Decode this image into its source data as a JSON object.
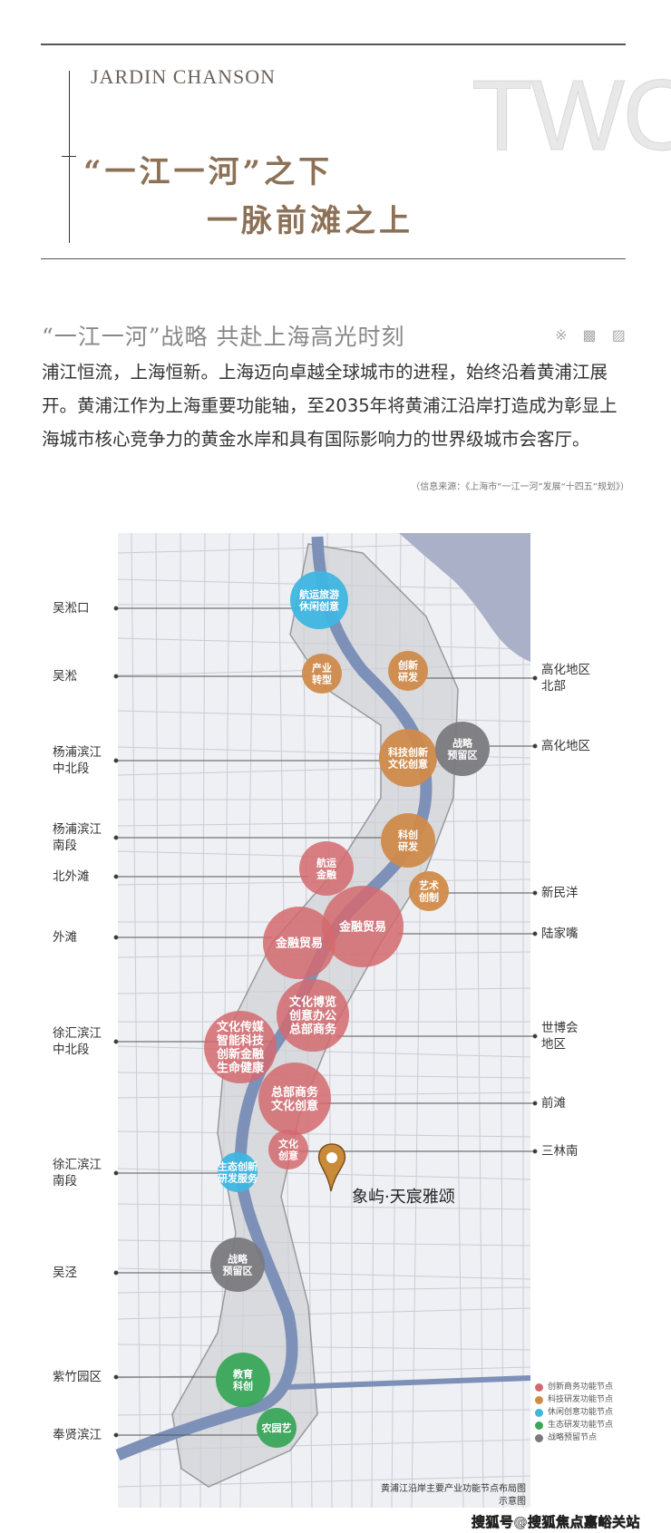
{
  "header": {
    "brand": "JARDIN CHANSON",
    "section_number": "TWO",
    "title_line1": "“一江一河”之下",
    "title_line2": "一脉前滩之上"
  },
  "section": {
    "subtitle": "“一江一河”战略  共赴上海高光时刻",
    "ornament": "※ ▩ ▨",
    "paragraph": "浦江恒流，上海恒新。上海迈向卓越全球城市的进程，始终沿着黄浦江展开。黄浦江作为上海重要功能轴，至2035年将黄浦江沿岸打造成为彰显上海城市核心竞争力的黄金水岸和具有国际影响力的世界级城市会客厅。",
    "source": "（信息来源：《上海市“一江一河”发展“十四五”规划》）"
  },
  "map": {
    "colors": {
      "commerce": "#d46a6f",
      "tech": "#d08b4a",
      "leisure": "#3fb6e0",
      "eco": "#3aa65a",
      "reserve": "#7a7a7e",
      "river": "#7d90b8"
    },
    "left_labels": [
      "吴淞口",
      "吴淞",
      "杨浦滨江\n中北段",
      "杨浦滨江\n南段",
      "北外滩",
      "外滩",
      "徐汇滨江\n中北段",
      "徐汇滨江\n南段",
      "吴泾",
      "紫竹园区",
      "奉贤滨江"
    ],
    "right_labels": [
      "高化地区\n北部",
      "高化地区",
      "新民洋",
      "陆家嘴",
      "世博会\n地区",
      "前滩",
      "三林南"
    ],
    "nodes": [
      {
        "text": "航运旅游\n休闲创意",
        "type": "leisure"
      },
      {
        "text": "产业\n转型",
        "type": "tech"
      },
      {
        "text": "创新\n研发",
        "type": "tech"
      },
      {
        "text": "科技创新\n文化创意",
        "type": "tech"
      },
      {
        "text": "战略\n预留区",
        "type": "reserve"
      },
      {
        "text": "科创\n研发",
        "type": "tech"
      },
      {
        "text": "航运\n金融",
        "type": "commerce"
      },
      {
        "text": "艺术\n创制",
        "type": "tech"
      },
      {
        "text": "金融贸易",
        "type": "commerce"
      },
      {
        "text": "金融贸易",
        "type": "commerce"
      },
      {
        "text": "文化博览\n创意办公\n总部商务",
        "type": "commerce"
      },
      {
        "text": "文化传媒\n智能科技\n创新金融\n生命健康",
        "type": "commerce"
      },
      {
        "text": "总部商务\n文化创意",
        "type": "commerce"
      },
      {
        "text": "文化\n创意",
        "type": "commerce"
      },
      {
        "text": "生态创新\n研发服务",
        "type": "leisure"
      },
      {
        "text": "战略\n预留区",
        "type": "reserve"
      },
      {
        "text": "教育\n科创",
        "type": "eco"
      },
      {
        "text": "农园艺",
        "type": "eco"
      }
    ],
    "marker_label": "象屿·天宸雅颂",
    "legend": [
      {
        "label": "创新商务功能节点",
        "type": "commerce"
      },
      {
        "label": "科技研发功能节点",
        "type": "tech"
      },
      {
        "label": "休闲创意功能节点",
        "type": "leisure"
      },
      {
        "label": "生态研发功能节点",
        "type": "eco"
      },
      {
        "label": "战略预留节点",
        "type": "reserve"
      }
    ],
    "caption_line1": "黄浦江沿岸主要产业功能节点布局图",
    "caption_line2": "示意图"
  },
  "watermark": "搜狐号@搜狐焦点嘉峪关站"
}
